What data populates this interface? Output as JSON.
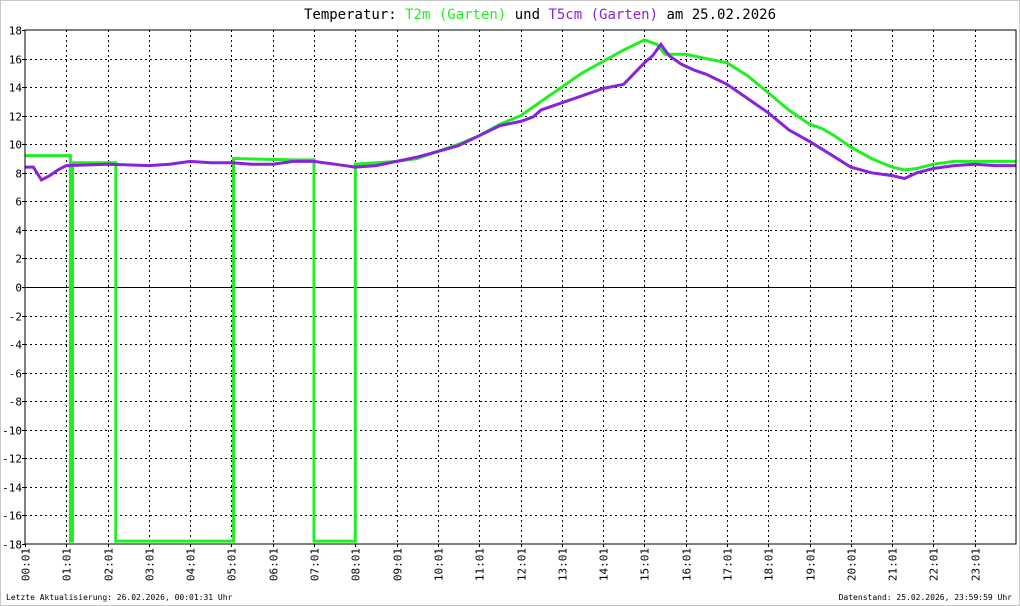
{
  "chart_data": {
    "type": "line",
    "title": {
      "prefix": "Temperatur: ",
      "series1": "T2m (Garten)",
      "mid": " und ",
      "series2": "T5cm (Garten)",
      "suffix": " am 25.02.2026"
    },
    "y_tick_labels": [
      "18",
      "16",
      "14",
      "12",
      "10",
      "8",
      "6",
      "4",
      "2",
      "0",
      "-2",
      "-4",
      "-6",
      "-8",
      "-10",
      "-12",
      "-14",
      "-16",
      "-18"
    ],
    "y_tick_values": [
      18,
      16,
      14,
      12,
      10,
      8,
      6,
      4,
      2,
      0,
      -2,
      -4,
      -6,
      -8,
      -10,
      -12,
      -14,
      -16,
      -18
    ],
    "ylim": [
      -18,
      18
    ],
    "xlim": [
      0,
      24
    ],
    "x_tick_labels": [
      "00:01",
      "01:01",
      "02:01",
      "03:01",
      "04:01",
      "05:01",
      "06:01",
      "07:01",
      "08:01",
      "09:01",
      "10:01",
      "11:01",
      "12:01",
      "13:01",
      "14:01",
      "15:01",
      "16:01",
      "17:01",
      "18:01",
      "19:01",
      "20:01",
      "21:01",
      "22:01",
      "23:01"
    ],
    "grid": true,
    "series": [
      {
        "name": "T2m (Garten)",
        "color": "#22ee22",
        "points": [
          [
            0,
            9.2
          ],
          [
            1.1,
            9.2
          ],
          [
            1.1,
            -17.8
          ],
          [
            1.15,
            -17.8
          ],
          [
            1.15,
            8.7
          ],
          [
            2.2,
            8.7
          ],
          [
            2.2,
            -17.8
          ],
          [
            5.05,
            -17.8
          ],
          [
            5.05,
            9.0
          ],
          [
            6.5,
            8.9
          ],
          [
            7.0,
            8.9
          ],
          [
            7.0,
            -17.8
          ],
          [
            8.0,
            -17.8
          ],
          [
            8.0,
            8.6
          ],
          [
            9.0,
            8.8
          ],
          [
            9.5,
            9.0
          ],
          [
            10.0,
            9.5
          ],
          [
            10.5,
            10.0
          ],
          [
            11.0,
            10.6
          ],
          [
            11.5,
            11.4
          ],
          [
            12.0,
            12.0
          ],
          [
            12.3,
            12.6
          ],
          [
            12.6,
            13.2
          ],
          [
            13.0,
            14.0
          ],
          [
            13.5,
            15.0
          ],
          [
            14.0,
            15.8
          ],
          [
            14.5,
            16.6
          ],
          [
            15.0,
            17.3
          ],
          [
            15.3,
            17.0
          ],
          [
            15.5,
            16.3
          ],
          [
            16.0,
            16.3
          ],
          [
            16.5,
            16.0
          ],
          [
            17.0,
            15.7
          ],
          [
            17.5,
            14.8
          ],
          [
            18.0,
            13.6
          ],
          [
            18.5,
            12.4
          ],
          [
            19.0,
            11.4
          ],
          [
            19.3,
            11.1
          ],
          [
            19.6,
            10.6
          ],
          [
            20.0,
            9.8
          ],
          [
            20.5,
            9.0
          ],
          [
            21.0,
            8.4
          ],
          [
            21.3,
            8.2
          ],
          [
            21.6,
            8.3
          ],
          [
            22.0,
            8.6
          ],
          [
            22.5,
            8.8
          ],
          [
            23.0,
            8.8
          ],
          [
            23.5,
            8.8
          ],
          [
            24.0,
            8.8
          ]
        ]
      },
      {
        "name": "T5cm (Garten)",
        "color": "#8822dd",
        "points": [
          [
            0,
            8.4
          ],
          [
            0.2,
            8.4
          ],
          [
            0.4,
            7.5
          ],
          [
            0.6,
            7.8
          ],
          [
            0.8,
            8.2
          ],
          [
            1.0,
            8.5
          ],
          [
            2.0,
            8.6
          ],
          [
            3.0,
            8.5
          ],
          [
            3.5,
            8.6
          ],
          [
            4.0,
            8.8
          ],
          [
            4.5,
            8.7
          ],
          [
            5.0,
            8.7
          ],
          [
            5.5,
            8.6
          ],
          [
            6.0,
            8.6
          ],
          [
            6.5,
            8.8
          ],
          [
            7.0,
            8.8
          ],
          [
            7.5,
            8.6
          ],
          [
            8.0,
            8.4
          ],
          [
            8.5,
            8.5
          ],
          [
            9.0,
            8.8
          ],
          [
            9.5,
            9.1
          ],
          [
            10.0,
            9.5
          ],
          [
            10.5,
            9.9
          ],
          [
            11.0,
            10.6
          ],
          [
            11.5,
            11.3
          ],
          [
            12.0,
            11.6
          ],
          [
            12.3,
            11.9
          ],
          [
            12.5,
            12.4
          ],
          [
            13.0,
            12.9
          ],
          [
            13.5,
            13.4
          ],
          [
            14.0,
            13.9
          ],
          [
            14.5,
            14.2
          ],
          [
            14.7,
            14.8
          ],
          [
            15.0,
            15.7
          ],
          [
            15.2,
            16.2
          ],
          [
            15.4,
            17.0
          ],
          [
            15.6,
            16.2
          ],
          [
            15.9,
            15.6
          ],
          [
            16.2,
            15.2
          ],
          [
            16.5,
            14.9
          ],
          [
            17.0,
            14.2
          ],
          [
            17.5,
            13.2
          ],
          [
            18.0,
            12.2
          ],
          [
            18.5,
            11.0
          ],
          [
            19.0,
            10.2
          ],
          [
            19.5,
            9.3
          ],
          [
            20.0,
            8.4
          ],
          [
            20.5,
            8.0
          ],
          [
            21.0,
            7.8
          ],
          [
            21.3,
            7.6
          ],
          [
            21.6,
            8.0
          ],
          [
            22.0,
            8.3
          ],
          [
            22.5,
            8.5
          ],
          [
            23.0,
            8.6
          ],
          [
            23.5,
            8.5
          ],
          [
            24.0,
            8.5
          ]
        ]
      }
    ]
  },
  "footer": {
    "left": "Letzte Aktualisierung: 26.02.2026, 00:01:31 Uhr",
    "right": "Datenstand: 25.02.2026, 23:59:59 Uhr"
  }
}
